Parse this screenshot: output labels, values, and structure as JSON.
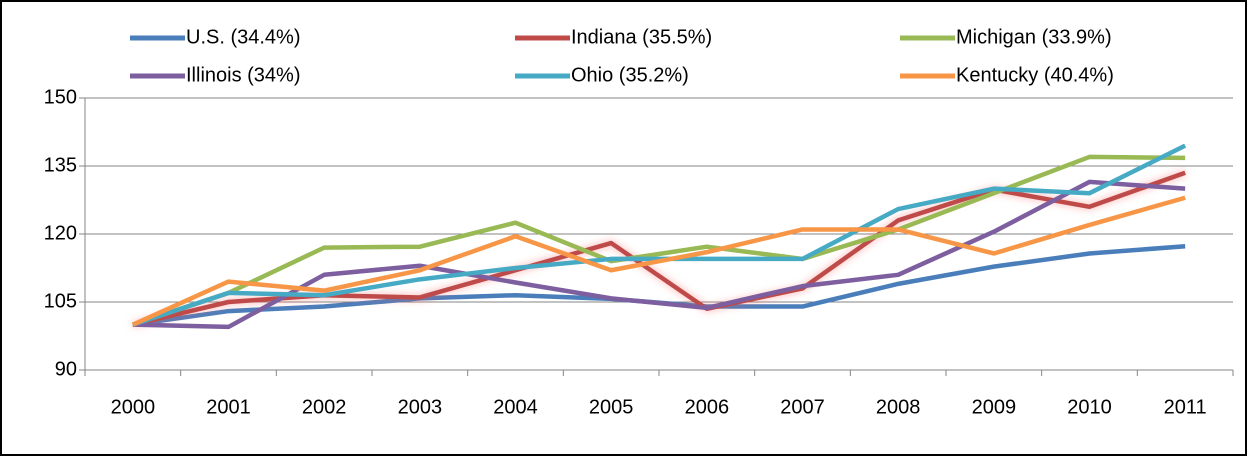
{
  "chart_data": {
    "type": "line",
    "categories": [
      "2000",
      "2001",
      "2002",
      "2003",
      "2004",
      "2005",
      "2006",
      "2007",
      "2008",
      "2009",
      "2010",
      "2011"
    ],
    "series": [
      {
        "name": "U.S. (34.4%)",
        "color": "#4a7ebb",
        "values": [
          100,
          103,
          104,
          105.8,
          106.5,
          105.7,
          104,
          104,
          109,
          112.8,
          115.7,
          117.3
        ]
      },
      {
        "name": "Indiana (35.5%)",
        "color": "#be4b48",
        "glow": true,
        "values": [
          100,
          105,
          106.5,
          106,
          112,
          118,
          103.5,
          108,
          123,
          129.8,
          126,
          133.5
        ]
      },
      {
        "name": "Michigan (33.9%)",
        "color": "#98b954",
        "values": [
          100,
          107,
          117,
          117.2,
          122.5,
          114,
          117.2,
          114.5,
          121,
          129,
          137,
          136.8
        ]
      },
      {
        "name": "Illinois (34%)",
        "color": "#7d5fa0",
        "values": [
          100,
          99.5,
          111,
          113,
          109.3,
          105.8,
          103.7,
          108.5,
          111,
          120.5,
          131.5,
          130
        ]
      },
      {
        "name": "Ohio (35.2%)",
        "color": "#46aac5",
        "values": [
          100,
          107,
          106.5,
          110,
          112.5,
          114.5,
          114.5,
          114.5,
          125.5,
          130,
          129,
          139.5
        ]
      },
      {
        "name": "Kentucky (40.4%)",
        "color": "#f79646",
        "values": [
          100,
          109.5,
          107.5,
          112,
          119.5,
          112,
          116,
          121,
          121,
          115.7,
          122,
          128
        ]
      }
    ],
    "ylim": [
      90,
      150
    ],
    "yticks": [
      90,
      105,
      120,
      135,
      150
    ],
    "grid": true
  }
}
